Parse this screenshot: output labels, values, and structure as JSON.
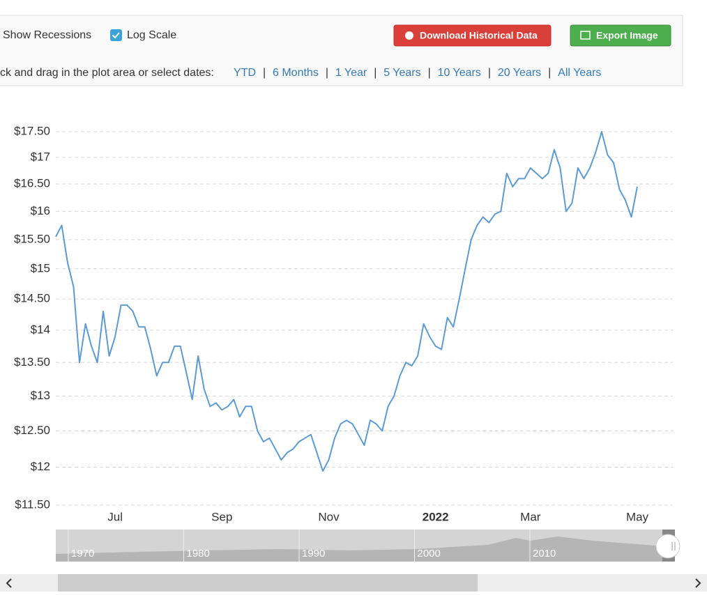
{
  "toolbar": {
    "recessions": "Show Recessions",
    "log_scale": "Log Scale",
    "download": "Download Historical Data",
    "export": "Export Image",
    "hint": "ck and drag in the plot area or select dates:",
    "ranges": [
      "YTD",
      "6 Months",
      "1 Year",
      "5 Years",
      "10 Years",
      "20 Years",
      "All Years"
    ]
  },
  "chart_data": {
    "type": "line",
    "log_scale": true,
    "grid": true,
    "color": "#5b9bd5",
    "categories": [
      null,
      null,
      null,
      null,
      null,
      null,
      null,
      null,
      null,
      null,
      "Jul",
      null,
      null,
      null,
      null,
      null,
      null,
      null,
      null,
      null,
      null,
      null,
      null,
      null,
      null,
      null,
      null,
      null,
      "Sep",
      null,
      null,
      null,
      null,
      null,
      null,
      null,
      null,
      null,
      null,
      null,
      null,
      null,
      null,
      null,
      null,
      null,
      "Nov",
      null,
      null,
      null,
      null,
      null,
      null,
      null,
      null,
      null,
      null,
      null,
      null,
      null,
      null,
      null,
      null,
      null,
      "2022",
      null,
      null,
      null,
      null,
      null,
      null,
      null,
      null,
      null,
      null,
      null,
      null,
      null,
      null,
      null,
      "Mar",
      null,
      null,
      null,
      null,
      null,
      null,
      null,
      null,
      null,
      null,
      null,
      null,
      null,
      null,
      null,
      null,
      null,
      "May"
    ],
    "values": [
      15.55,
      15.75,
      15.1,
      14.7,
      13.5,
      14.1,
      13.75,
      13.5,
      14.3,
      13.6,
      13.9,
      14.4,
      14.4,
      14.3,
      14.05,
      14.05,
      13.7,
      13.3,
      13.5,
      13.5,
      13.75,
      13.75,
      13.35,
      12.95,
      13.6,
      13.1,
      12.85,
      12.9,
      12.8,
      12.85,
      12.95,
      12.7,
      12.85,
      12.85,
      12.5,
      12.35,
      12.4,
      12.25,
      12.1,
      12.2,
      12.25,
      12.35,
      12.4,
      12.45,
      12.2,
      11.95,
      12.1,
      12.4,
      12.6,
      12.65,
      12.6,
      12.45,
      12.3,
      12.65,
      12.6,
      12.5,
      12.85,
      13.0,
      13.3,
      13.5,
      13.45,
      13.6,
      14.1,
      13.9,
      13.75,
      13.7,
      14.2,
      14.05,
      14.5,
      15.0,
      15.5,
      15.75,
      15.9,
      15.8,
      15.95,
      16.0,
      16.7,
      16.45,
      16.6,
      16.6,
      16.8,
      16.7,
      16.6,
      16.7,
      17.15,
      16.8,
      16.0,
      16.15,
      16.8,
      16.6,
      16.8,
      17.1,
      17.5,
      17.05,
      16.9,
      16.4,
      16.2,
      15.9,
      16.45
    ],
    "ylim": [
      11.5,
      17.5
    ],
    "yticks": [
      {
        "value": 11.5,
        "label": "$11.50"
      },
      {
        "value": 12,
        "label": "$12"
      },
      {
        "value": 12.5,
        "label": "$12.50"
      },
      {
        "value": 13,
        "label": "$13"
      },
      {
        "value": 13.5,
        "label": "$13.50"
      },
      {
        "value": 14,
        "label": "$14"
      },
      {
        "value": 14.5,
        "label": "$14.50"
      },
      {
        "value": 15,
        "label": "$15"
      },
      {
        "value": 15.5,
        "label": "$15.50"
      },
      {
        "value": 16,
        "label": "$16"
      },
      {
        "value": 16.5,
        "label": "$16.50"
      },
      {
        "value": 17,
        "label": "$17"
      },
      {
        "value": 17.5,
        "label": "$17.50"
      }
    ]
  },
  "navigator": {
    "labels": [
      "1970",
      "1980",
      "1990",
      "2000",
      "2010"
    ]
  }
}
